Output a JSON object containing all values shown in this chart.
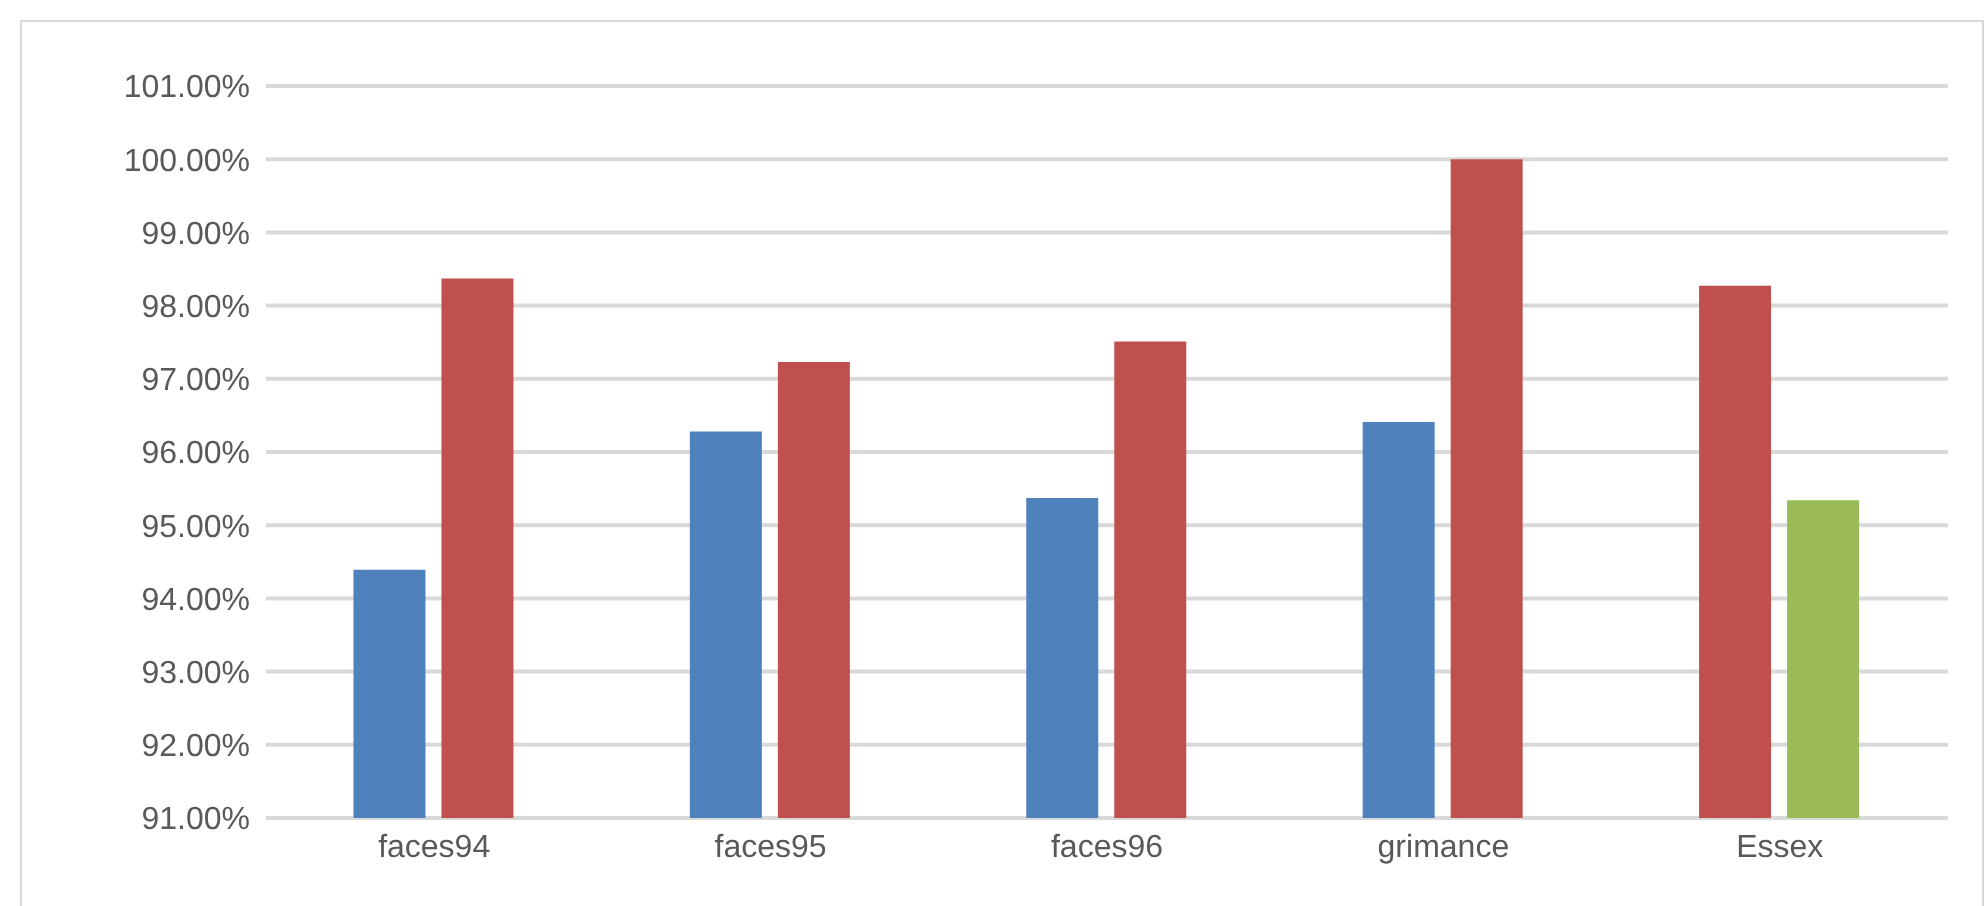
{
  "chart_data": {
    "type": "bar",
    "categories": [
      "faces94",
      "faces95",
      "faces96",
      "grimance",
      "Essex"
    ],
    "series": [
      {
        "colors": [
          "#4f81bd",
          "#4f81bd",
          "#4f81bd",
          "#4f81bd",
          "#c0504d"
        ],
        "values": [
          94.39,
          96.28,
          95.37,
          96.41,
          98.27
        ]
      },
      {
        "colors": [
          "#c0504d",
          "#c0504d",
          "#c0504d",
          "#c0504d",
          "#9bbb59"
        ],
        "values": [
          98.37,
          97.23,
          97.51,
          100.0,
          95.34
        ]
      }
    ],
    "ylim": [
      91,
      101
    ],
    "yticks": [
      {
        "value": 91,
        "label": "91.00%"
      },
      {
        "value": 92,
        "label": "92.00%"
      },
      {
        "value": 93,
        "label": "93.00%"
      },
      {
        "value": 94,
        "label": "94.00%"
      },
      {
        "value": 95,
        "label": "95.00%"
      },
      {
        "value": 96,
        "label": "96.00%"
      },
      {
        "value": 97,
        "label": "97.00%"
      },
      {
        "value": 98,
        "label": "98.00%"
      },
      {
        "value": 99,
        "label": "99.00%"
      },
      {
        "value": 100,
        "label": "100.00%"
      },
      {
        "value": 101,
        "label": "101.00%"
      }
    ],
    "grid": "y",
    "legend": false
  }
}
